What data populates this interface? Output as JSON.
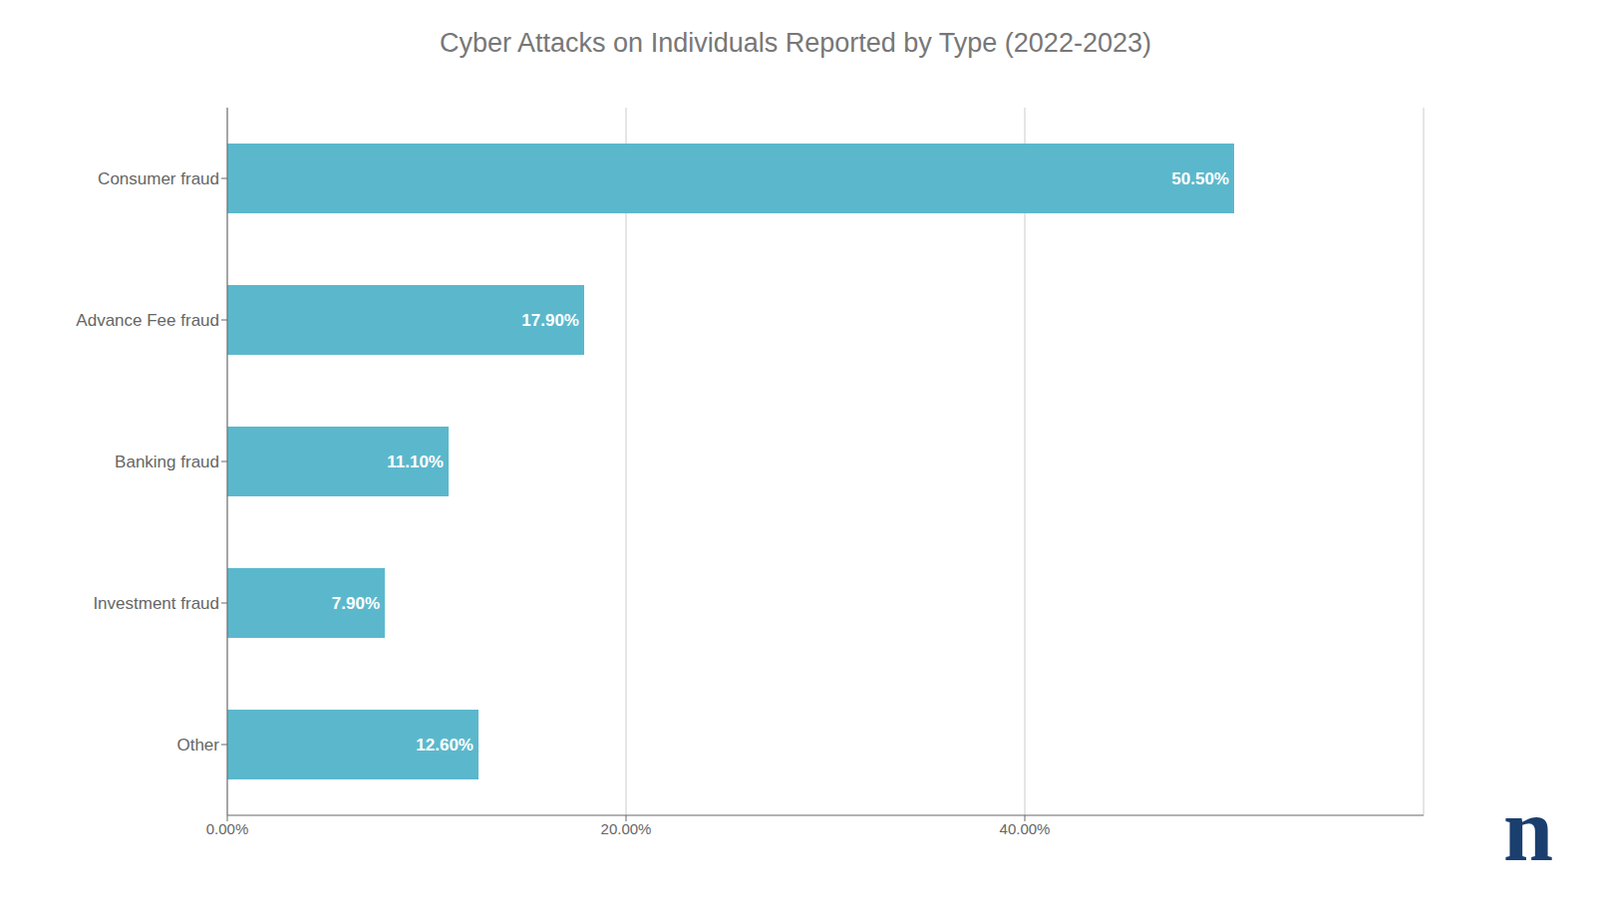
{
  "chart_data": {
    "type": "bar",
    "orientation": "horizontal",
    "title": "Cyber Attacks on Individuals Reported by Type (2022-2023)",
    "categories": [
      "Consumer fraud",
      "Advance Fee fraud",
      "Banking fraud",
      "Investment fraud",
      "Other"
    ],
    "values": [
      50.5,
      17.9,
      11.1,
      7.9,
      12.6
    ],
    "value_labels": [
      "50.50%",
      "17.90%",
      "11.10%",
      "7.90%",
      "12.60%"
    ],
    "data_labels": true,
    "color": "#5BB8CC",
    "xlim": [
      0,
      60
    ],
    "xticks": [
      {
        "value": 0,
        "label": "0.00%"
      },
      {
        "value": 20,
        "label": "20.00%"
      },
      {
        "value": 40,
        "label": "40.00%"
      }
    ],
    "grid": true,
    "annotations": [
      {
        "text": "n",
        "color": "#1A3F6F"
      }
    ]
  }
}
